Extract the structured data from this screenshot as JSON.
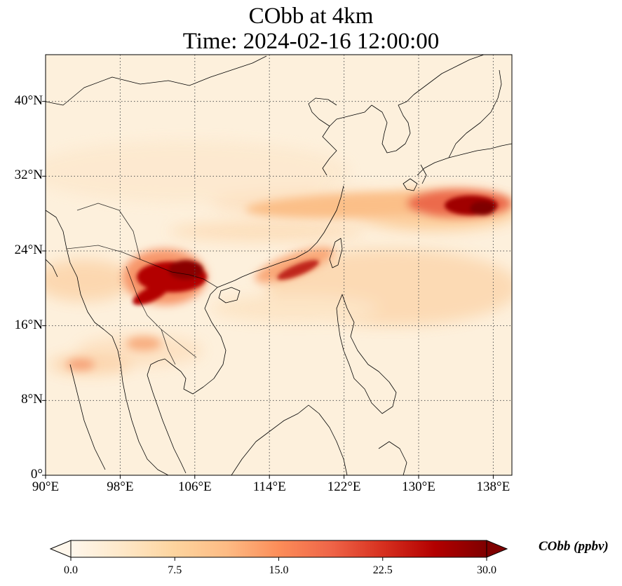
{
  "title": [
    "CObb at 4km",
    "Time: 2024-02-16 12:00:00"
  ],
  "map": {
    "extent": {
      "lon_min": 90,
      "lon_max": 140,
      "lat_min": 0,
      "lat_max": 45
    },
    "lat_ticks": [
      {
        "value": 0,
        "label": "0°"
      },
      {
        "value": 8,
        "label": "8°N"
      },
      {
        "value": 16,
        "label": "16°N"
      },
      {
        "value": 24,
        "label": "24°N"
      },
      {
        "value": 32,
        "label": "32°N"
      },
      {
        "value": 40,
        "label": "40°N"
      }
    ],
    "lon_ticks": [
      {
        "value": 90,
        "label": "90°E"
      },
      {
        "value": 98,
        "label": "98°E"
      },
      {
        "value": 106,
        "label": "106°E"
      },
      {
        "value": 114,
        "label": "114°E"
      },
      {
        "value": 122,
        "label": "122°E"
      },
      {
        "value": 130,
        "label": "130°E"
      },
      {
        "value": 138,
        "label": "138°E"
      }
    ],
    "gridlines": "dotted",
    "background_value": 0.5
  },
  "colorbar": {
    "label": "CObb (ppbv)",
    "ticks": [
      "0.0",
      "7.5",
      "15.0",
      "22.5",
      "30.0"
    ],
    "vmin": 0,
    "vmax": 30,
    "extend": "both",
    "colormap": "OrRd",
    "colors": [
      "#fff7ec",
      "#fee8c8",
      "#fdd49e",
      "#fdbb84",
      "#fc8d59",
      "#ef6548",
      "#d7301f",
      "#b30000",
      "#7f0000"
    ]
  },
  "plumes": [
    {
      "region": "Myanmar-Laos-Vietnam",
      "lon": 102.5,
      "lat": 21.5,
      "peak_ppbv": 30
    },
    {
      "region": "east of Japan",
      "lon": 136.5,
      "lat": 29.0,
      "peak_ppbv": 30
    },
    {
      "region": "Taiwan Strait band",
      "lon": 116.5,
      "lat": 21.5,
      "peak_ppbv": 22
    },
    {
      "region": "East China Sea band",
      "lon": 125.0,
      "lat": 29.5,
      "peak_ppbv": 13
    },
    {
      "region": "South China Sea band",
      "lon": 125.0,
      "lat": 21.0,
      "peak_ppbv": 8
    },
    {
      "region": "Bay of Bengal band",
      "lon": 93.0,
      "lat": 20.5,
      "peak_ppbv": 6
    },
    {
      "region": "Thailand",
      "lon": 101.5,
      "lat": 14.5,
      "peak_ppbv": 9
    }
  ]
}
